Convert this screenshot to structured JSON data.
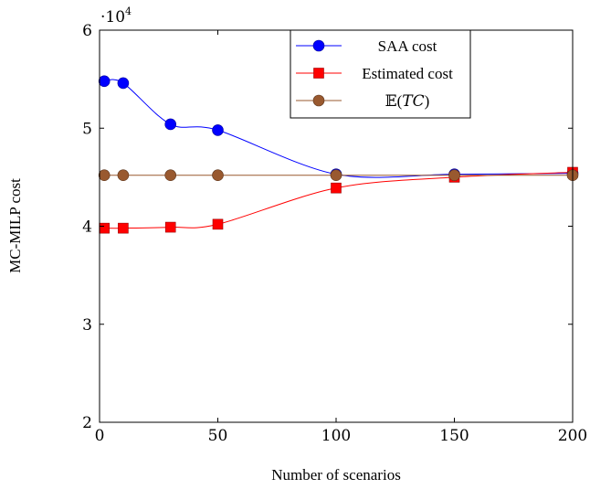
{
  "chart_data": {
    "type": "line",
    "title": "",
    "xlabel": "Number of scenarios",
    "ylabel": "MC-MILP cost",
    "y_multiplier": "·10",
    "y_multiplier_exponent": "4",
    "xlim": [
      0,
      200
    ],
    "ylim": [
      2,
      6
    ],
    "xticks": [
      0,
      50,
      100,
      150,
      200
    ],
    "yticks": [
      2,
      3,
      4,
      5,
      6
    ],
    "grid": false,
    "legend_position": "top-center",
    "series": [
      {
        "name": "SAA cost",
        "color": "#0000ff",
        "marker": "circle",
        "x": [
          2,
          10,
          30,
          50,
          100,
          150,
          200
        ],
        "y": [
          5.48,
          5.46,
          5.04,
          4.98,
          4.53,
          4.53,
          4.54
        ]
      },
      {
        "name": "Estimated cost",
        "color": "#ff0000",
        "marker": "square",
        "x": [
          2,
          10,
          30,
          50,
          100,
          150,
          200
        ],
        "y": [
          3.98,
          3.98,
          3.99,
          4.02,
          4.39,
          4.5,
          4.55
        ]
      },
      {
        "name_prefix": "𝔼(",
        "name_math": "TC",
        "name_suffix": ")",
        "color": "#99592f",
        "marker": "circle",
        "x": [
          2,
          10,
          30,
          50,
          100,
          150,
          200
        ],
        "y": [
          4.52,
          4.52,
          4.52,
          4.52,
          4.52,
          4.52,
          4.52
        ]
      }
    ]
  }
}
